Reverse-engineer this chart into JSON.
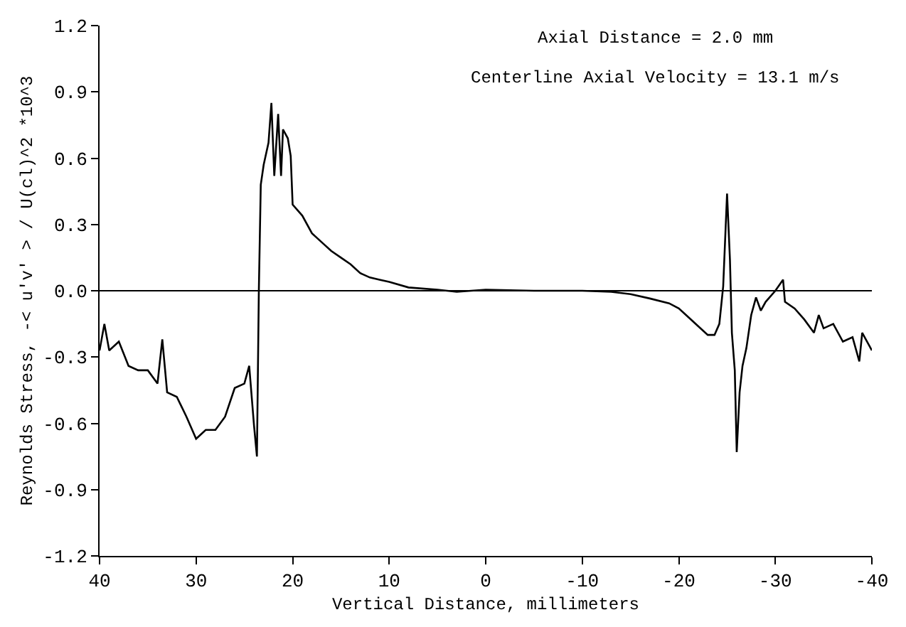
{
  "chart_data": {
    "type": "line",
    "xlabel": "Vertical Distance, millimeters",
    "ylabel": "Reynolds Stress, -< u'v' > / U(cl)^2 *10^3",
    "annotations": [
      "Axial Distance = 2.0 mm",
      "Centerline Axial Velocity = 13.1 m/s"
    ],
    "x": [
      40,
      39.5,
      39,
      38,
      37,
      36,
      35,
      34,
      33.5,
      33,
      32,
      31,
      30,
      29,
      28,
      27,
      26,
      25,
      24.5,
      24,
      23.7,
      23.5,
      23.3,
      23,
      22.5,
      22.2,
      21.9,
      21.5,
      21.2,
      21,
      20.5,
      20.2,
      20,
      19,
      18,
      17,
      16,
      15,
      14,
      13,
      12,
      11,
      10,
      8,
      5,
      3,
      0,
      -5,
      -10,
      -13,
      -15,
      -17,
      -19,
      -20,
      -21,
      -22,
      -23,
      -23.7,
      -24.2,
      -24.6,
      -25,
      -25.3,
      -25.5,
      -25.8,
      -26,
      -26.3,
      -26.6,
      -27,
      -27.5,
      -28,
      -28.5,
      -29,
      -30,
      -30.8,
      -31,
      -32,
      -33,
      -34,
      -34.5,
      -35,
      -36,
      -37,
      -38,
      -38.7,
      -39,
      -40
    ],
    "series": [
      {
        "color": "#000000",
        "values": [
          -0.27,
          -0.15,
          -0.27,
          -0.23,
          -0.34,
          -0.36,
          -0.36,
          -0.42,
          -0.22,
          -0.46,
          -0.48,
          -0.57,
          -0.67,
          -0.63,
          -0.63,
          -0.57,
          -0.44,
          -0.42,
          -0.34,
          -0.61,
          -0.75,
          0.0,
          0.48,
          0.57,
          0.67,
          0.85,
          0.52,
          0.8,
          0.52,
          0.73,
          0.69,
          0.61,
          0.39,
          0.34,
          0.26,
          0.22,
          0.18,
          0.15,
          0.12,
          0.08,
          0.06,
          0.05,
          0.04,
          0.015,
          0.005,
          -0.005,
          0.005,
          0.0,
          0.0,
          -0.005,
          -0.015,
          -0.035,
          -0.057,
          -0.08,
          -0.12,
          -0.16,
          -0.2,
          -0.2,
          -0.15,
          0.02,
          0.44,
          0.14,
          -0.19,
          -0.36,
          -0.73,
          -0.46,
          -0.34,
          -0.26,
          -0.11,
          -0.03,
          -0.09,
          -0.05,
          0.0,
          0.05,
          -0.05,
          -0.08,
          -0.13,
          -0.19,
          -0.11,
          -0.17,
          -0.15,
          -0.23,
          -0.21,
          -0.32,
          -0.19,
          -0.27
        ]
      }
    ],
    "xlim": [
      40,
      -40
    ],
    "xticks": [
      40,
      30,
      20,
      10,
      {
        "value": 0,
        "label": "0"
      },
      -10,
      -20,
      -30,
      -40
    ],
    "ylim": [
      -1.2,
      1.2
    ],
    "yticks": [
      -1.2,
      -0.9,
      -0.6,
      -0.3,
      {
        "value": 0,
        "label": "0.0"
      },
      0.3,
      0.6,
      0.9,
      1.2
    ],
    "ref_lines": [
      {
        "axis": "y",
        "value": 0,
        "color": "#000000"
      }
    ],
    "marker": "none",
    "line_style": "solid"
  }
}
